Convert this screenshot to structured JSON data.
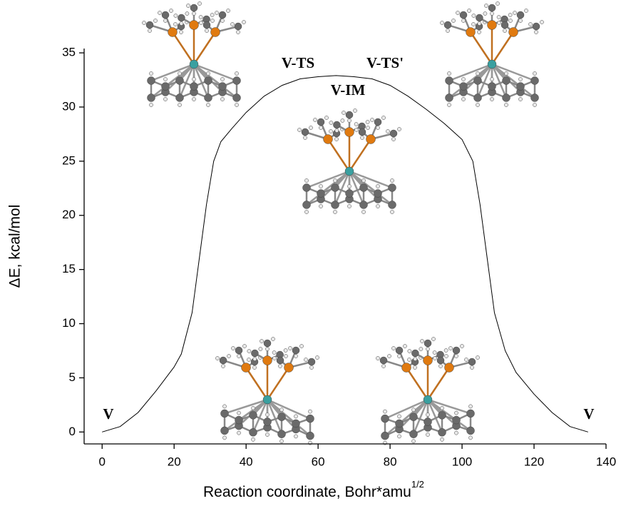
{
  "chart_data": {
    "type": "line",
    "ylabel": "ΔE, kcal/mol",
    "xlabel": "Reaction coordinate, Bohr*amu",
    "xlabel_superscript": "1/2",
    "annotations": [
      "V",
      "V-TS",
      "V-IM",
      "V-TS'",
      "V"
    ],
    "x": [
      0,
      5,
      10,
      15,
      20,
      22,
      25,
      27,
      29,
      31,
      33,
      36,
      40,
      45,
      50,
      55,
      60,
      65,
      70,
      75,
      80,
      85,
      90,
      95,
      100,
      103,
      105,
      107,
      109,
      112,
      115,
      120,
      125,
      130,
      135
    ],
    "values": [
      0,
      0.5,
      1.8,
      3.8,
      6,
      7.2,
      11,
      16,
      21,
      25,
      26.8,
      28,
      29.5,
      31,
      32,
      32.6,
      32.8,
      32.9,
      32.8,
      32.6,
      32,
      31,
      29.8,
      28.5,
      27,
      25,
      21,
      16,
      11,
      7.5,
      5.5,
      3.5,
      1.8,
      0.5,
      0
    ],
    "color": "#000000",
    "xlim": [
      -5,
      140
    ],
    "ylim": [
      -1.1,
      35.4
    ],
    "xticks": [
      0,
      20,
      40,
      60,
      80,
      100,
      120,
      140
    ],
    "yticks": [
      0,
      5,
      10,
      15,
      20,
      25,
      30,
      35
    ],
    "grid": false
  }
}
